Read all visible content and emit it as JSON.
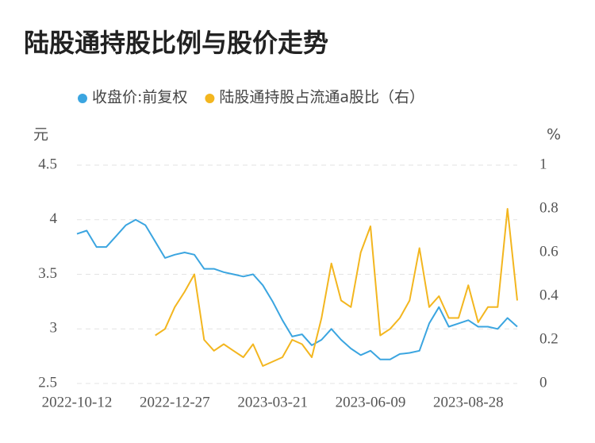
{
  "chart_data": {
    "type": "line",
    "title": "陆股通持股比例与股价走势",
    "y_unit": "元",
    "y2_unit": "%",
    "categories": [
      "2022-10-12",
      null,
      null,
      null,
      null,
      null,
      null,
      null,
      null,
      null,
      "2022-12-27",
      null,
      null,
      null,
      null,
      null,
      null,
      null,
      null,
      null,
      "2023-03-21",
      null,
      null,
      null,
      null,
      null,
      null,
      null,
      null,
      null,
      "2023-06-09",
      null,
      null,
      null,
      null,
      null,
      null,
      null,
      null,
      null,
      "2023-08-28",
      null,
      null,
      null,
      null,
      null
    ],
    "series": [
      {
        "name": "收盘价:前复权",
        "color": "#3ba5e0",
        "axis": "y",
        "values": [
          3.87,
          3.9,
          3.75,
          3.75,
          3.85,
          3.95,
          4.0,
          3.95,
          3.8,
          3.65,
          3.68,
          3.7,
          3.68,
          3.55,
          3.55,
          3.52,
          3.5,
          3.48,
          3.5,
          3.4,
          3.25,
          3.08,
          2.93,
          2.95,
          2.85,
          2.9,
          3.0,
          2.9,
          2.82,
          2.76,
          2.8,
          2.72,
          2.72,
          2.77,
          2.78,
          2.8,
          3.05,
          3.2,
          3.02,
          3.05,
          3.08,
          3.02,
          3.02,
          3.0,
          3.1,
          3.02
        ]
      },
      {
        "name": "陆股通持股占流通a股比（右）",
        "color": "#f3b61f",
        "axis": "y2",
        "values": [
          null,
          null,
          null,
          null,
          null,
          null,
          null,
          null,
          0.22,
          0.25,
          0.35,
          0.42,
          0.5,
          0.2,
          0.15,
          0.18,
          0.15,
          0.12,
          0.18,
          0.08,
          0.1,
          0.12,
          0.2,
          0.18,
          0.12,
          0.3,
          0.55,
          0.38,
          0.35,
          0.6,
          0.72,
          0.22,
          0.25,
          0.3,
          0.38,
          0.62,
          0.35,
          0.4,
          0.3,
          0.3,
          0.45,
          0.28,
          0.35,
          0.35,
          0.8,
          0.38
        ]
      }
    ],
    "ylim": [
      2.5,
      4.5
    ],
    "yticks": [
      2.5,
      3.0,
      3.5,
      4.0,
      4.5
    ],
    "y2lim": [
      0,
      1.0
    ],
    "y2ticks": [
      0,
      0.2,
      0.4,
      0.6,
      0.8,
      1.0
    ],
    "grid": true
  }
}
